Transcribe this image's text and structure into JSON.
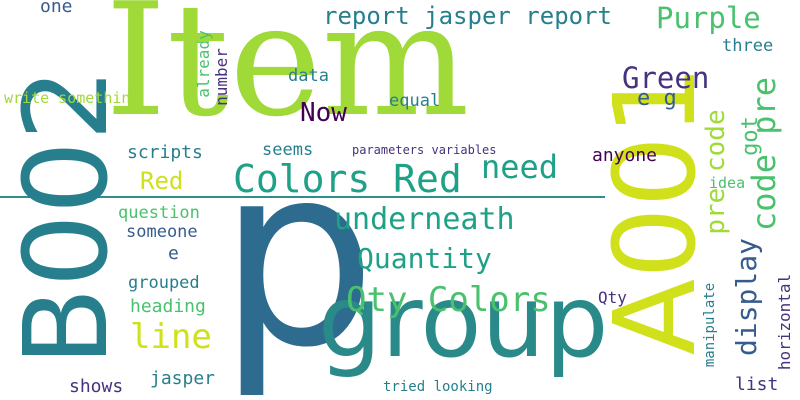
{
  "palette": {
    "yellow": "#d0e11c",
    "lime": "#a0da39",
    "green": "#4ac16d",
    "teal": "#1fa187",
    "cyan": "#277f8e",
    "blue": "#365c8d",
    "indigo": "#46327e",
    "purple": "#440154"
  },
  "words": {
    "item": "Item",
    "p": "p",
    "group": "group",
    "a001": "A001",
    "b002": "B002",
    "colors_red": "Colors Red",
    "qty_colors": "Qty Colors",
    "underneath": "underneath",
    "quantity": "Quantity",
    "code_pre": "code pre",
    "need": "need",
    "pre_code": "pre code",
    "display": "display",
    "purple": "Purple",
    "green": "Green",
    "report_jasper_report": "report jasper report",
    "now": "Now",
    "line": "line",
    "red": "Red",
    "e_g": "e g",
    "got": "got",
    "one": "one",
    "write_something": "write something",
    "already": "already",
    "number": "number",
    "data": "data",
    "equal": "equal",
    "three": "three",
    "scripts": "scripts",
    "seems": "seems",
    "parameters_variables": "parameters variables",
    "anyone": "anyone",
    "idea": "idea",
    "question": "question",
    "someone": "someone",
    "e": "e",
    "grouped": "grouped",
    "heading": "heading",
    "shows": "shows",
    "jasper": "jasper",
    "manipulate": "manipulate",
    "qty": "Qty",
    "list": "list",
    "horizontal": "horizontal",
    "tried_looking": "tried looking"
  }
}
